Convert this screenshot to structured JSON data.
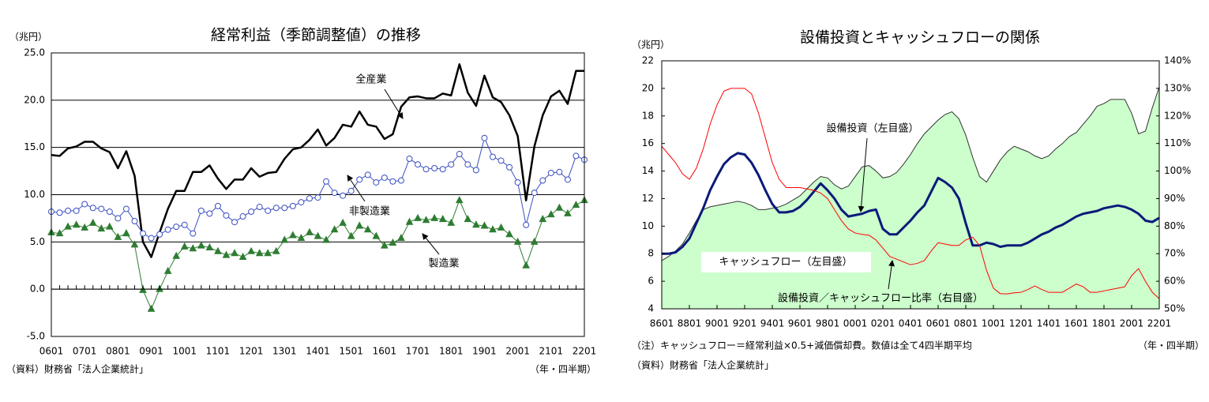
{
  "chart_data": [
    {
      "type": "line",
      "title": "経常利益（季節調整値）の推移",
      "y_label": "（兆円）",
      "x_label": "（年・四半期）",
      "source": "（資料）財務省「法人企業統計」",
      "categories": [
        "0601",
        null,
        null,
        null,
        "0701",
        null,
        null,
        null,
        "0801",
        null,
        null,
        null,
        "0901",
        null,
        null,
        null,
        "1001",
        null,
        null,
        null,
        "1101",
        null,
        null,
        null,
        "1201",
        null,
        null,
        null,
        "1301",
        null,
        null,
        null,
        "1401",
        null,
        null,
        null,
        "1501",
        null,
        null,
        null,
        "1601",
        null,
        null,
        null,
        "1701",
        null,
        null,
        null,
        "1801",
        null,
        null,
        null,
        "1901",
        null,
        null,
        null,
        "2001",
        null,
        null,
        null,
        "2101",
        null,
        null,
        null,
        "2201"
      ],
      "ylim": [
        -5,
        25
      ],
      "yticks": [
        {
          "value": -5,
          "label": "-5.0"
        },
        {
          "value": 0,
          "label": "0.0"
        },
        {
          "value": 5,
          "label": "5.0"
        },
        {
          "value": 10,
          "label": "10.0"
        },
        {
          "value": 15,
          "label": "15.0"
        },
        {
          "value": 20,
          "label": "20.0"
        },
        {
          "value": 25,
          "label": "25.0"
        }
      ],
      "grid": true,
      "series": [
        {
          "name": "全産業",
          "color": "#000000",
          "marker": "none",
          "line_width": 2.5,
          "values": [
            14.2,
            14.1,
            14.9,
            15.1,
            15.6,
            15.6,
            14.9,
            14.5,
            12.8,
            14.6,
            12.0,
            5.0,
            3.4,
            6.0,
            8.5,
            10.4,
            10.4,
            12.4,
            12.4,
            13.1,
            11.7,
            10.6,
            11.6,
            11.6,
            12.8,
            11.9,
            12.3,
            12.4,
            13.8,
            14.8,
            15.0,
            15.8,
            16.9,
            15.2,
            16.0,
            17.4,
            17.2,
            18.8,
            17.4,
            17.2,
            15.9,
            16.4,
            19.3,
            20.3,
            20.4,
            20.2,
            20.2,
            20.7,
            20.5,
            23.8,
            20.8,
            19.4,
            22.6,
            20.3,
            19.8,
            18.4,
            16.2,
            9.4,
            15.1,
            18.4,
            20.4,
            21.0,
            19.6,
            23.1,
            23.1
          ]
        },
        {
          "name": "非製造業",
          "color": "#3a4fc0",
          "marker": "circle",
          "line_width": 1,
          "values": [
            8.2,
            8.1,
            8.3,
            8.3,
            9.0,
            8.6,
            8.5,
            8.2,
            7.5,
            8.5,
            7.2,
            5.9,
            5.4,
            5.8,
            6.3,
            6.6,
            6.8,
            5.9,
            8.3,
            8.0,
            8.8,
            7.8,
            7.1,
            7.7,
            8.2,
            8.7,
            8.3,
            8.6,
            8.6,
            8.8,
            9.2,
            9.6,
            9.7,
            11.4,
            10.2,
            9.9,
            10.4,
            11.6,
            12.1,
            11.3,
            11.8,
            11.4,
            11.5,
            13.8,
            13.2,
            12.7,
            12.8,
            12.7,
            13.2,
            14.3,
            13.2,
            12.6,
            16.0,
            14.0,
            13.6,
            12.9,
            11.3,
            6.8,
            10.2,
            11.5,
            12.3,
            12.4,
            11.6,
            14.1,
            13.7
          ]
        },
        {
          "name": "製造業",
          "color": "#2e7d32",
          "marker": "triangle",
          "line_width": 1,
          "values": [
            6.0,
            5.9,
            6.6,
            6.8,
            6.5,
            7.0,
            6.4,
            6.6,
            5.5,
            5.9,
            4.7,
            -0.1,
            -2.1,
            0.0,
            1.9,
            3.5,
            4.5,
            4.3,
            4.6,
            4.4,
            4.0,
            3.6,
            3.8,
            3.4,
            4.0,
            3.8,
            3.8,
            4.0,
            5.2,
            5.7,
            5.4,
            6.0,
            5.6,
            5.2,
            6.3,
            7.0,
            5.6,
            6.7,
            6.3,
            5.6,
            4.6,
            4.9,
            5.4,
            7.1,
            7.5,
            7.3,
            7.5,
            7.4,
            7.0,
            9.4,
            7.4,
            6.8,
            6.7,
            6.3,
            6.5,
            5.8,
            5.0,
            2.5,
            5.0,
            7.4,
            7.9,
            8.6,
            8.0,
            8.9,
            9.4
          ]
        }
      ]
    },
    {
      "type": "line",
      "title": "設備投資とキャッシュフローの関係",
      "y_label": "（兆円）",
      "x_label": "（年・四半期）",
      "source": "（資料）財務省「法人企業統計」",
      "note": "（注）キャッシュフロー＝経常利益×0.5+減価償却費。数値は全て4四半期平均",
      "categories": [
        "8601",
        null,
        null,
        null,
        "8801",
        null,
        null,
        null,
        "9001",
        null,
        null,
        null,
        "9201",
        null,
        null,
        null,
        "9401",
        null,
        null,
        null,
        "9601",
        null,
        null,
        null,
        "9801",
        null,
        null,
        null,
        "0001",
        null,
        null,
        null,
        "0201",
        null,
        null,
        null,
        "0401",
        null,
        null,
        null,
        "0601",
        null,
        null,
        null,
        "0801",
        null,
        null,
        null,
        "1001",
        null,
        null,
        null,
        "1201",
        null,
        null,
        null,
        "1401",
        null,
        null,
        null,
        "1601",
        null,
        null,
        null,
        "1801",
        null,
        null,
        null,
        "2001",
        null,
        null,
        null,
        "2201"
      ],
      "ylim": [
        4,
        22
      ],
      "yticks": [
        4,
        6,
        8,
        10,
        12,
        14,
        16,
        18,
        20,
        22
      ],
      "y2lim": [
        50,
        140
      ],
      "y2ticks": [
        {
          "value": 50,
          "label": "50%"
        },
        {
          "value": 60,
          "label": "60%"
        },
        {
          "value": 70,
          "label": "70%"
        },
        {
          "value": 80,
          "label": "80%"
        },
        {
          "value": 90,
          "label": "90%"
        },
        {
          "value": 100,
          "label": "100%"
        },
        {
          "value": 110,
          "label": "110%"
        },
        {
          "value": 120,
          "label": "120%"
        },
        {
          "value": 130,
          "label": "130%"
        },
        {
          "value": 140,
          "label": "140%"
        }
      ],
      "grid": false,
      "series": [
        {
          "name": "設備投資（左目盛）",
          "color": "#ccffcc",
          "type": "area",
          "marker": "none",
          "line_width": 1,
          "values": [
            7.5,
            7.8,
            8.2,
            8.7,
            9.5,
            10.4,
            11.2,
            11.4,
            11.5,
            11.6,
            11.7,
            11.8,
            11.7,
            11.5,
            11.2,
            11.2,
            11.3,
            11.4,
            11.6,
            11.9,
            12.2,
            12.7,
            13.2,
            13.6,
            13.5,
            13.0,
            12.7,
            12.9,
            13.6,
            14.3,
            14.4,
            14.0,
            13.5,
            13.6,
            13.9,
            14.5,
            15.2,
            16.0,
            16.7,
            17.2,
            17.7,
            18.1,
            18.3,
            17.8,
            16.6,
            15.0,
            13.6,
            13.2,
            14.0,
            14.8,
            15.4,
            15.8,
            15.6,
            15.4,
            15.1,
            14.9,
            15.1,
            15.6,
            16.0,
            16.5,
            16.8,
            17.4,
            18.0,
            18.7,
            18.9,
            19.2,
            19.2,
            19.2,
            18.2,
            16.7,
            16.9,
            18.6,
            20.1
          ]
        },
        {
          "name": "キャッシュフロー（左目盛）",
          "color": "#0a1a7a",
          "marker": "none",
          "line_width": 3,
          "values": [
            8.0,
            8.0,
            8.1,
            8.5,
            9.1,
            10.2,
            11.3,
            12.6,
            13.6,
            14.5,
            15.0,
            15.3,
            15.2,
            14.6,
            13.7,
            12.6,
            11.6,
            11.0,
            11.0,
            11.1,
            11.4,
            11.9,
            12.5,
            13.1,
            12.6,
            12.0,
            11.2,
            10.7,
            10.8,
            10.9,
            11.1,
            11.2,
            9.8,
            9.4,
            9.4,
            9.9,
            10.4,
            11.0,
            11.5,
            12.5,
            13.5,
            13.2,
            12.8,
            12.0,
            10.2,
            8.6,
            8.6,
            8.8,
            8.7,
            8.5,
            8.6,
            8.6,
            8.6,
            8.8,
            9.1,
            9.4,
            9.6,
            9.9,
            10.1,
            10.4,
            10.7,
            10.9,
            11.0,
            11.1,
            11.3,
            11.4,
            11.5,
            11.4,
            11.2,
            10.9,
            10.4,
            10.3,
            10.6
          ]
        },
        {
          "name": "設備投資／キャッシュフロー比率（右目盛）",
          "color": "#ff0000",
          "axis": "y2",
          "marker": "none",
          "line_width": 1,
          "values": [
            109,
            106,
            103,
            99,
            97,
            101,
            108,
            117,
            124,
            129,
            130,
            130,
            130,
            128,
            121,
            112,
            103,
            97,
            94,
            94,
            94,
            93.5,
            93,
            92,
            90,
            86,
            82,
            79,
            77.5,
            77,
            76.7,
            75,
            72,
            69,
            68,
            67,
            66,
            66.5,
            67.5,
            71,
            74,
            73.5,
            73,
            73,
            75,
            76,
            73,
            64,
            57.5,
            55.5,
            55.4,
            55.8,
            56,
            57,
            58.3,
            57,
            56,
            56,
            56,
            57.5,
            59,
            58,
            56,
            56,
            56.5,
            57,
            57.5,
            58,
            62,
            64.6,
            60,
            56,
            53.7
          ]
        }
      ]
    }
  ]
}
